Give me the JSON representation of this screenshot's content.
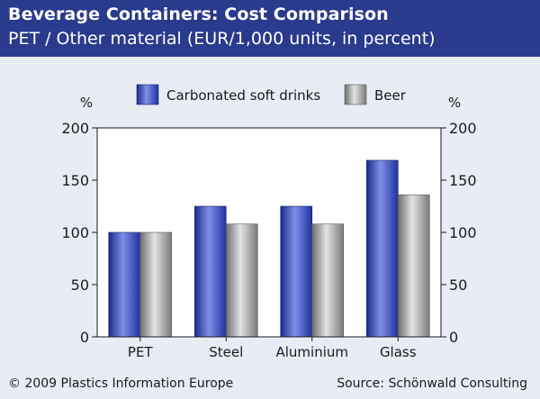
{
  "header": {
    "title": "Beverage Containers: Cost Comparison",
    "subtitle": "PET / Other material (EUR/1,000 units, in percent)"
  },
  "footer": {
    "copyright": "© 2009 Plastics Information Europe",
    "source": "Source: Schönwald Consulting"
  },
  "colors": {
    "header_bg": "#2a3a8c",
    "series_1": "#3344b0",
    "series_2": "#8c8c8c"
  },
  "chart_data": {
    "type": "bar",
    "categories": [
      "PET",
      "Steel",
      "Aluminium",
      "Glass"
    ],
    "series": [
      {
        "name": "Carbonated soft drinks",
        "values": [
          100,
          125,
          125,
          169
        ]
      },
      {
        "name": "Beer",
        "values": [
          100,
          108,
          108,
          136
        ]
      }
    ],
    "ylabel_left": "%",
    "ylabel_right": "%",
    "ylim": [
      0,
      200
    ],
    "yticks": [
      0,
      50,
      100,
      150,
      200
    ],
    "grid": false,
    "legend_position": "top"
  }
}
